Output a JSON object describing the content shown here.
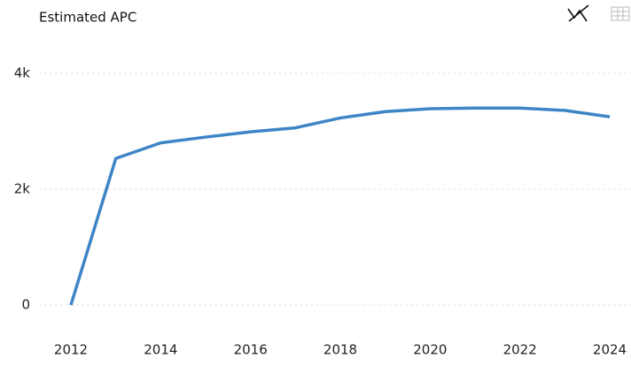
{
  "chart_data": {
    "type": "line",
    "title": "Estimated APC",
    "x": [
      2012,
      2013,
      2014,
      2015,
      2016,
      2017,
      2018,
      2019,
      2020,
      2021,
      2022,
      2023,
      2024
    ],
    "series": [
      {
        "name": "Estimated APC",
        "color": "#3d85c6",
        "values": [
          0,
          2530,
          2800,
          2900,
          2990,
          3060,
          3230,
          3340,
          3390,
          3400,
          3400,
          3360,
          3250
        ]
      }
    ],
    "xlim": [
      2012,
      2024
    ],
    "xticks": [
      2012,
      2014,
      2016,
      2018,
      2020,
      2022,
      2024
    ],
    "ylim": [
      0,
      4000
    ],
    "yticks": [
      0,
      {
        "value": 2000,
        "label": "2k"
      },
      {
        "value": 4000,
        "label": "4k"
      }
    ],
    "grid": true
  }
}
